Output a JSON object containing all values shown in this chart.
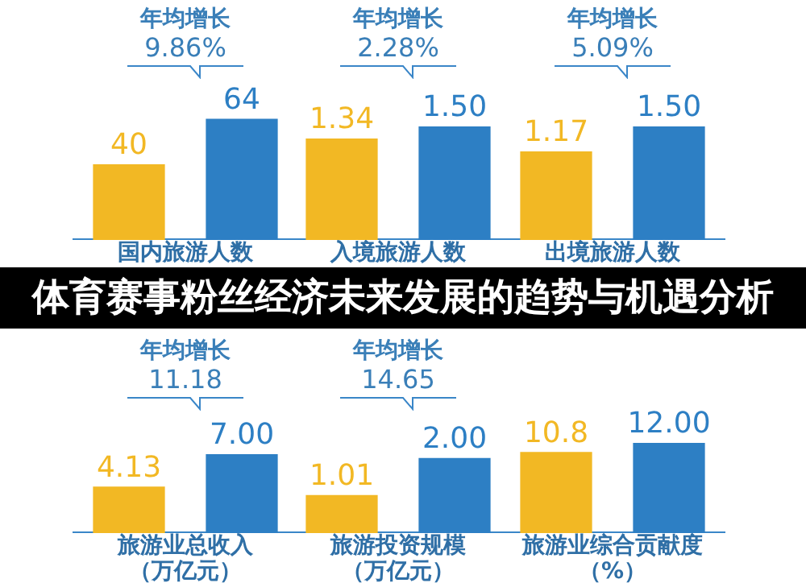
{
  "chart_data": [
    {
      "type": "bar",
      "title": "年均增长",
      "subtitle": "9.86%",
      "xlabel": "国内旅游人数",
      "categories": [
        null,
        null
      ],
      "values": [
        40,
        64
      ],
      "colors": [
        "#f2b824",
        "#2d7fc4"
      ],
      "value_labels": [
        "40",
        "64"
      ],
      "tick_labels": false,
      "legend": false
    },
    {
      "type": "bar",
      "title": "年均增长",
      "subtitle": "2.28%",
      "xlabel": "入境旅游人数",
      "categories": [
        null,
        null
      ],
      "values": [
        1.34,
        1.5
      ],
      "colors": [
        "#f2b824",
        "#2d7fc4"
      ],
      "value_labels": [
        "1.34",
        "1.50"
      ],
      "tick_labels": false,
      "legend": false
    },
    {
      "type": "bar",
      "title": "年均增长",
      "subtitle": "5.09%",
      "xlabel": "出境旅游人数",
      "categories": [
        null,
        null
      ],
      "values": [
        1.17,
        1.5
      ],
      "colors": [
        "#f2b824",
        "#2d7fc4"
      ],
      "value_labels": [
        "1.17",
        "1.50"
      ],
      "tick_labels": false,
      "legend": false
    },
    {
      "type": "other",
      "title": "体育赛事粉丝经济未来发展的趋势与机遇分析"
    },
    {
      "type": "bar",
      "title": "年均增长",
      "subtitle": "11.18",
      "xlabel": "旅游业总收入（万亿元）",
      "categories": [
        null,
        null
      ],
      "values": [
        4.13,
        7
      ],
      "colors": [
        "#f2b824",
        "#2d7fc4"
      ],
      "value_labels": [
        "4.13",
        "7.00"
      ],
      "tick_labels": false,
      "legend": false
    },
    {
      "type": "bar",
      "title": "年均增长",
      "subtitle": "14.65",
      "xlabel": "旅游投资规模（万亿元）",
      "categories": [
        null,
        null
      ],
      "values": [
        1.01,
        2
      ],
      "colors": [
        "#f2b824",
        "#2d7fc4"
      ],
      "value_labels": [
        "1.01",
        "2.00"
      ],
      "tick_labels": false,
      "legend": false
    },
    {
      "type": "bar",
      "xlabel": "旅游业综合贡献度（%）",
      "categories": [
        null,
        null
      ],
      "values": [
        10.8,
        12
      ],
      "colors": [
        "#f2b824",
        "#2d7fc4"
      ],
      "value_labels": [
        "10.8",
        "12.00"
      ],
      "tick_labels": false,
      "legend": false
    }
  ]
}
